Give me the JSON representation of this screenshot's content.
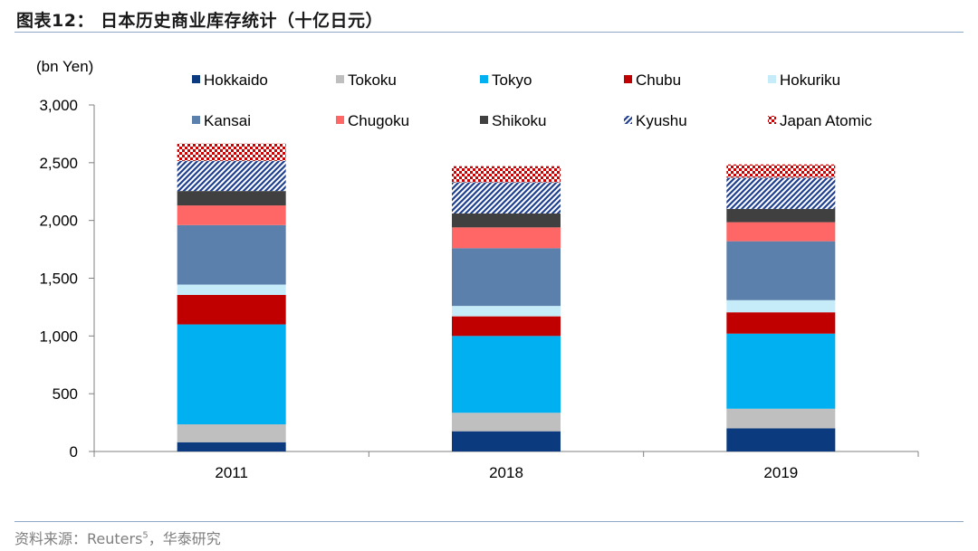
{
  "header": {
    "title": "图表12：  日本历史商业库存统计（十亿日元）"
  },
  "footer": {
    "source_prefix": "资料来源：Reuters",
    "source_sup": "5",
    "source_suffix": "，华泰研究"
  },
  "chart_data": {
    "type": "bar",
    "stacked": true,
    "ylabel": "(bn Yen)",
    "xlabel": "",
    "ylim": [
      0,
      3000
    ],
    "yticks": [
      0,
      500,
      1000,
      1500,
      2000,
      2500,
      3000
    ],
    "ytick_labels": [
      "0",
      "500",
      "1,000",
      "1,500",
      "2,000",
      "2,500",
      "3,000"
    ],
    "categories": [
      "2011",
      "2018",
      "2019"
    ],
    "legend_position": "top",
    "grid": false,
    "series": [
      {
        "name": "Hokkaido",
        "color": "#0b3a7e",
        "pattern": "solid",
        "values": [
          80,
          175,
          200
        ]
      },
      {
        "name": "Tokoku",
        "color": "#bfbfbf",
        "pattern": "solid",
        "values": [
          155,
          160,
          170
        ]
      },
      {
        "name": "Tokyo",
        "color": "#00b0f0",
        "pattern": "solid",
        "values": [
          865,
          665,
          650
        ]
      },
      {
        "name": "Chubu",
        "color": "#c00000",
        "pattern": "solid",
        "values": [
          255,
          170,
          185
        ]
      },
      {
        "name": "Hokuriku",
        "color": "#c6ebf9",
        "pattern": "solid",
        "values": [
          90,
          90,
          105
        ]
      },
      {
        "name": "Kansai",
        "color": "#5b80ab",
        "pattern": "solid",
        "values": [
          515,
          500,
          510
        ]
      },
      {
        "name": "Chugoku",
        "color": "#ff6666",
        "pattern": "solid",
        "values": [
          170,
          180,
          165
        ]
      },
      {
        "name": "Shikoku",
        "color": "#404040",
        "pattern": "solid",
        "values": [
          125,
          120,
          115
        ]
      },
      {
        "name": "Kyushu",
        "color": "#1f3f8f",
        "pattern": "diagonal",
        "values": [
          260,
          270,
          270
        ]
      },
      {
        "name": "Japan Atomic",
        "color": "#cc0000",
        "pattern": "checker",
        "values": [
          150,
          140,
          115
        ]
      }
    ]
  }
}
